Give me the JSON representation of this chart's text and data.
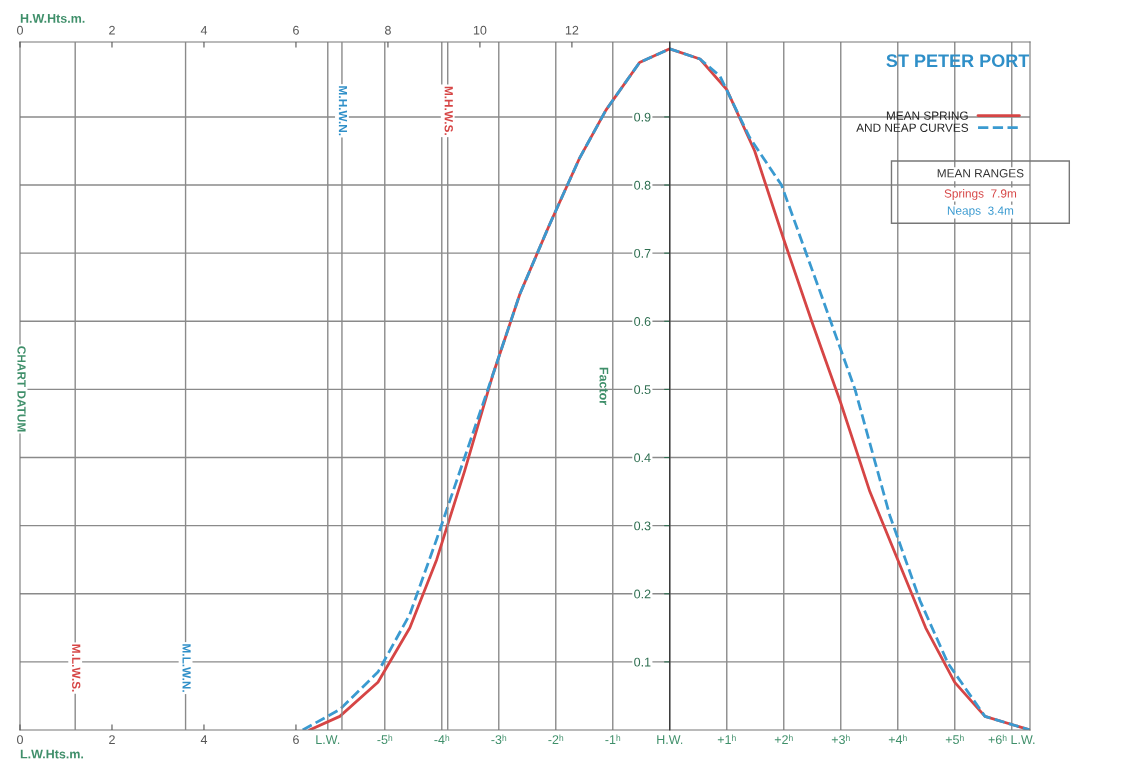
{
  "chart_data": [
    {
      "type": "line",
      "title": "ST PETER PORT",
      "ylabel": "Factor",
      "xlim": [
        -11.4,
        6.32
      ],
      "xticks": [
        {
          "value": -6,
          "label": "L.W."
        },
        {
          "value": -5,
          "label": "-5ʰ"
        },
        {
          "value": -4,
          "label": "-4ʰ"
        },
        {
          "value": -3,
          "label": "-3ʰ"
        },
        {
          "value": -2,
          "label": "-2ʰ"
        },
        {
          "value": -1,
          "label": "-1ʰ"
        },
        {
          "value": 0,
          "label": "H.W."
        },
        {
          "value": 1,
          "label": "+1ʰ"
        },
        {
          "value": 2,
          "label": "+2ʰ"
        },
        {
          "value": 3,
          "label": "+3ʰ"
        },
        {
          "value": 4,
          "label": "+4ʰ"
        },
        {
          "value": 5,
          "label": "+5ʰ"
        },
        {
          "value": 6,
          "label": "+6ʰ L.W."
        }
      ],
      "ylim": [
        0,
        1.01
      ],
      "yticks": [
        0.1,
        0.2,
        0.3,
        0.4,
        0.5,
        0.6,
        0.7,
        0.8,
        0.9
      ],
      "grid": true,
      "legend": "top right",
      "series": [
        {
          "name": "MEAN SPRING",
          "color": "#d64545",
          "line_style": "solid",
          "x": [
            -6.32,
            -5.79,
            -5.12,
            -4.56,
            -4.09,
            -3.6,
            -3.11,
            -2.63,
            -2.12,
            -1.58,
            -1.12,
            -0.53,
            0,
            0.53,
            1.0,
            1.49,
            2.0,
            2.49,
            3.0,
            3.51,
            4.0,
            4.49,
            5.0,
            5.53,
            6.32
          ],
          "values": [
            0,
            0.02,
            0.07,
            0.15,
            0.25,
            0.38,
            0.52,
            0.64,
            0.74,
            0.84,
            0.91,
            0.98,
            1.0,
            0.985,
            0.94,
            0.85,
            0.72,
            0.6,
            0.48,
            0.35,
            0.25,
            0.15,
            0.07,
            0.02,
            0
          ]
        },
        {
          "name": "AND NEAP CURVES",
          "color": "#3a9ad0",
          "line_style": "dashed",
          "x": [
            -6.44,
            -5.79,
            -5.12,
            -4.56,
            -4.09,
            -3.6,
            -3.11,
            -2.63,
            -2.12,
            -1.58,
            -1.12,
            -0.53,
            0,
            0.53,
            0.88,
            1.4,
            1.96,
            2.63,
            3.25,
            3.86,
            4.39,
            4.88,
            5.53,
            6.32
          ],
          "values": [
            0,
            0.03,
            0.085,
            0.17,
            0.28,
            0.4,
            0.52,
            0.64,
            0.74,
            0.84,
            0.91,
            0.98,
            1.0,
            0.985,
            0.96,
            0.87,
            0.8,
            0.645,
            0.5,
            0.315,
            0.19,
            0.098,
            0.02,
            0
          ]
        }
      ],
      "annotations": [
        "MEAN RANGES",
        "Springs  7.9m",
        "Neaps  3.4m"
      ]
    },
    {
      "type": "line",
      "xlabel": "L.W.Hts.m.",
      "x2label": "H.W.Hts.m.",
      "ylim": [
        0,
        1.01
      ],
      "yticks": [
        0.1,
        0.2,
        0.3,
        0.4,
        0.5,
        0.6,
        0.7,
        0.8,
        0.9
      ],
      "tick_labels": "x",
      "ref_lines": [
        {
          "axis": "x",
          "value": 7.0,
          "label": "M.H.W.N.",
          "color": "#8a8a8a"
        },
        {
          "axis": "x",
          "value": 9.3,
          "label": "M.H.W.S.",
          "color": "#8a8a8a"
        },
        {
          "axis": "x",
          "value": 1.2,
          "label": "M.L.W.S.",
          "color": "#8a8a8a"
        },
        {
          "axis": "x",
          "value": 3.6,
          "label": "M.L.W.N.",
          "color": "#8a8a8a"
        }
      ],
      "xlim": [
        0,
        21.96
      ],
      "xticks": [
        0,
        2,
        4,
        6
      ],
      "x2lim": [
        0,
        21.96
      ],
      "x2ticks": [
        0,
        2,
        4,
        6,
        8,
        10,
        12
      ],
      "annotations": [
        "CHART DATUM"
      ]
    }
  ]
}
